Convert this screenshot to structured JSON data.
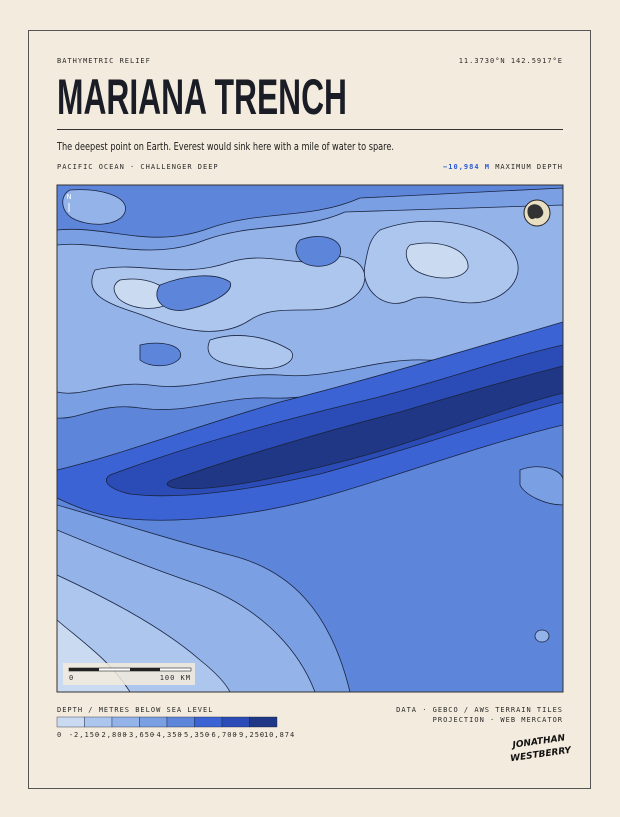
{
  "header": {
    "kicker": "BATHYMETRIC RELIEF",
    "coordinates": "11.3730°N  142.5917°E",
    "title": "MARIANA TRENCH",
    "subtitle": "The deepest point on Earth. Everest would sink here with a mile of water to spare.",
    "location": "PACIFIC OCEAN · CHALLENGER DEEP",
    "max_depth_value": "−10,984 M",
    "max_depth_label": "MAXIMUM DEPTH"
  },
  "map": {
    "scale_start": "0",
    "scale_end": "100 KM"
  },
  "legend": {
    "title": "DEPTH / METRES BELOW SEA LEVEL",
    "colors": [
      "#c9daf1",
      "#adc6ee",
      "#93b3e9",
      "#7a9fe3",
      "#5d86da",
      "#3b63d3",
      "#2b4cb6",
      "#1f3784"
    ],
    "labels": [
      "0",
      "-2,150",
      "-2,800",
      "-3,650",
      "-4,350",
      "-5,350",
      "-6,700",
      "-9,250",
      "-10,874"
    ]
  },
  "footer": {
    "data": "DATA · GEBCO / AWS TERRAIN TILES",
    "projection": "PROJECTION · WEB MERCATOR",
    "signature_line_1": "JONATHAN",
    "signature_line_2": "WESTBERRY"
  }
}
